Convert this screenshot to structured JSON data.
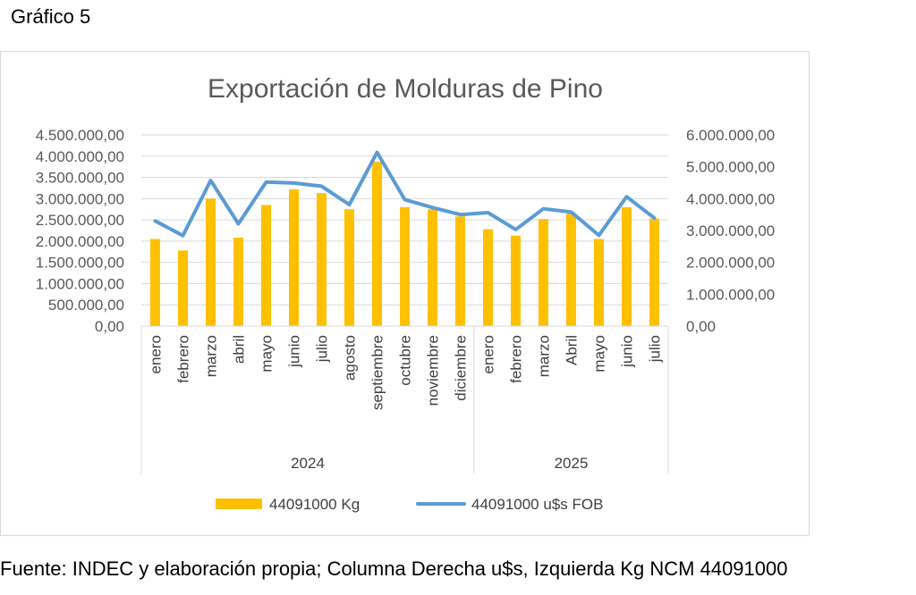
{
  "figure_label": "Gráfico 5",
  "source_note": "Fuente: INDEC y elaboración propia; Columna Derecha u$s, Izquierda Kg NCM 44091000",
  "chart_data": {
    "type": "bar",
    "title": "Exportación de Molduras de Pino",
    "categories": [
      "enero",
      "febrero",
      "marzo",
      "abril",
      "mayo",
      "junio",
      "julio",
      "agosto",
      "septiembre",
      "octubre",
      "noviembre",
      "diciembre",
      "enero",
      "febrero",
      "marzo",
      "Abril",
      "mayo",
      "junio",
      "julio"
    ],
    "groups": [
      {
        "label": "2024",
        "count": 12
      },
      {
        "label": "2025",
        "count": 7
      }
    ],
    "y_left": {
      "ylim": [
        0,
        4500000
      ],
      "ticks": [
        0,
        500000,
        1000000,
        1500000,
        2000000,
        2500000,
        3000000,
        3500000,
        4000000,
        4500000
      ],
      "tick_labels": [
        "0,00",
        "500.000,00",
        "1.000.000,00",
        "1.500.000,00",
        "2.000.000,00",
        "2.500.000,00",
        "3.000.000,00",
        "3.500.000,00",
        "4.000.000,00",
        "4.500.000,00"
      ]
    },
    "y_right": {
      "ylim": [
        0,
        6000000
      ],
      "ticks": [
        0,
        1000000,
        2000000,
        3000000,
        4000000,
        5000000,
        6000000
      ],
      "tick_labels": [
        "0,00",
        "1.000.000,00",
        "2.000.000,00",
        "3.000.000,00",
        "4.000.000,00",
        "5.000.000,00",
        "6.000.000,00"
      ]
    },
    "grid": true,
    "legend_position": "bottom",
    "series": [
      {
        "name": "44091000 Kg",
        "type": "bar",
        "axis": "left",
        "color": "#FFC000",
        "values": [
          2050000,
          1780000,
          3000000,
          2080000,
          2850000,
          3220000,
          3130000,
          2750000,
          3870000,
          2800000,
          2750000,
          2580000,
          2280000,
          2130000,
          2520000,
          2650000,
          2050000,
          2800000,
          2530000
        ]
      },
      {
        "name": "44091000 u$s FOB",
        "type": "line",
        "axis": "right",
        "color": "#5B9BD5",
        "values": [
          3300000,
          2840000,
          4570000,
          3210000,
          4520000,
          4490000,
          4390000,
          3810000,
          5450000,
          3970000,
          3720000,
          3500000,
          3560000,
          3030000,
          3680000,
          3580000,
          2850000,
          4060000,
          3390000
        ]
      }
    ]
  }
}
